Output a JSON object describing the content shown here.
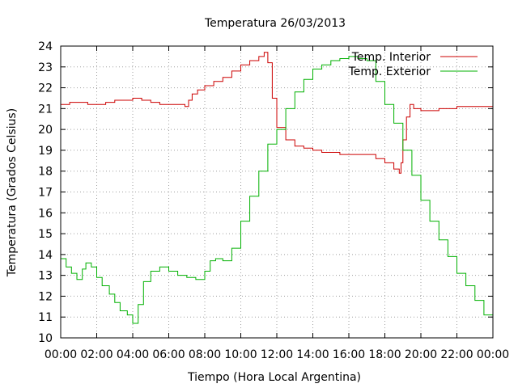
{
  "chart_data": {
    "type": "line",
    "title": "Temperatura 26/03/2013",
    "xlabel": "Tiempo (Hora Local Argentina)",
    "ylabel": "Temperatura (Grados Celsius)",
    "xlim": [
      0,
      24
    ],
    "ylim": [
      10,
      24
    ],
    "x_ticks": [
      {
        "value": 0,
        "label": "00:00"
      },
      {
        "value": 2,
        "label": "02:00"
      },
      {
        "value": 4,
        "label": "04:00"
      },
      {
        "value": 6,
        "label": "06:00"
      },
      {
        "value": 8,
        "label": "08:00"
      },
      {
        "value": 10,
        "label": "10:00"
      },
      {
        "value": 12,
        "label": "12:00"
      },
      {
        "value": 14,
        "label": "14:00"
      },
      {
        "value": 16,
        "label": "16:00"
      },
      {
        "value": 18,
        "label": "18:00"
      },
      {
        "value": 20,
        "label": "20:00"
      },
      {
        "value": 22,
        "label": "22:00"
      },
      {
        "value": 24,
        "label": "00:00"
      }
    ],
    "y_ticks": [
      {
        "value": 10,
        "label": "10"
      },
      {
        "value": 11,
        "label": "11"
      },
      {
        "value": 12,
        "label": "12"
      },
      {
        "value": 13,
        "label": "13"
      },
      {
        "value": 14,
        "label": "14"
      },
      {
        "value": 15,
        "label": "15"
      },
      {
        "value": 16,
        "label": "16"
      },
      {
        "value": 17,
        "label": "17"
      },
      {
        "value": 18,
        "label": "18"
      },
      {
        "value": 19,
        "label": "19"
      },
      {
        "value": 20,
        "label": "20"
      },
      {
        "value": 21,
        "label": "21"
      },
      {
        "value": 22,
        "label": "22"
      },
      {
        "value": 23,
        "label": "23"
      },
      {
        "value": 24,
        "label": "24"
      }
    ],
    "grid": true,
    "legend_position": "top-right",
    "series": [
      {
        "name": "Temp. Interior",
        "color": "#cc0000",
        "x": [
          0,
          0.5,
          1,
          1.5,
          2,
          2.5,
          3,
          3.5,
          4,
          4.5,
          5,
          5.5,
          6,
          6.5,
          6.9,
          7.1,
          7.3,
          7.6,
          8,
          8.5,
          9,
          9.5,
          10,
          10.5,
          11,
          11.3,
          11.5,
          11.75,
          12,
          12.5,
          13,
          13.5,
          14,
          14.5,
          15,
          15.5,
          16,
          16.5,
          17,
          17.5,
          18,
          18.5,
          18.8,
          18.9,
          19,
          19.2,
          19.4,
          19.6,
          20,
          20.5,
          21,
          21.5,
          22,
          22.5,
          23,
          23.5,
          24
        ],
        "values": [
          21.2,
          21.3,
          21.3,
          21.2,
          21.2,
          21.3,
          21.4,
          21.4,
          21.5,
          21.4,
          21.3,
          21.2,
          21.2,
          21.2,
          21.1,
          21.4,
          21.7,
          21.9,
          22.1,
          22.3,
          22.5,
          22.8,
          23.1,
          23.3,
          23.5,
          23.7,
          23.2,
          21.5,
          20.1,
          19.5,
          19.2,
          19.1,
          19.0,
          18.9,
          18.9,
          18.8,
          18.8,
          18.8,
          18.8,
          18.6,
          18.4,
          18.1,
          17.9,
          18.4,
          19.5,
          20.6,
          21.2,
          21.0,
          20.9,
          20.9,
          21.0,
          21.0,
          21.1,
          21.1,
          21.1,
          21.1,
          21.1
        ]
      },
      {
        "name": "Temp. Exterior",
        "color": "#00b000",
        "x": [
          0,
          0.3,
          0.6,
          0.9,
          1.2,
          1.4,
          1.7,
          2.0,
          2.3,
          2.7,
          3.0,
          3.3,
          3.7,
          4.0,
          4.3,
          4.6,
          5.0,
          5.5,
          6.0,
          6.5,
          7.0,
          7.5,
          8.0,
          8.3,
          8.6,
          9.0,
          9.5,
          10.0,
          10.5,
          11.0,
          11.5,
          12.0,
          12.5,
          13.0,
          13.5,
          14.0,
          14.5,
          15.0,
          15.5,
          16.0,
          16.5,
          17.0,
          17.5,
          18.0,
          18.5,
          19.0,
          19.5,
          20.0,
          20.5,
          21.0,
          21.5,
          22.0,
          22.5,
          23.0,
          23.5,
          24.0
        ],
        "values": [
          13.8,
          13.4,
          13.1,
          12.8,
          13.3,
          13.6,
          13.4,
          12.9,
          12.5,
          12.1,
          11.7,
          11.3,
          11.1,
          10.7,
          11.6,
          12.7,
          13.2,
          13.4,
          13.2,
          13.0,
          12.9,
          12.8,
          13.2,
          13.7,
          13.8,
          13.7,
          14.3,
          15.6,
          16.8,
          18.0,
          19.3,
          20.0,
          21.0,
          21.8,
          22.4,
          22.9,
          23.1,
          23.3,
          23.4,
          23.5,
          23.4,
          23.3,
          22.3,
          21.2,
          20.3,
          19.0,
          17.8,
          16.6,
          15.6,
          14.7,
          13.9,
          13.1,
          12.5,
          11.8,
          11.1,
          10.7
        ]
      }
    ]
  }
}
